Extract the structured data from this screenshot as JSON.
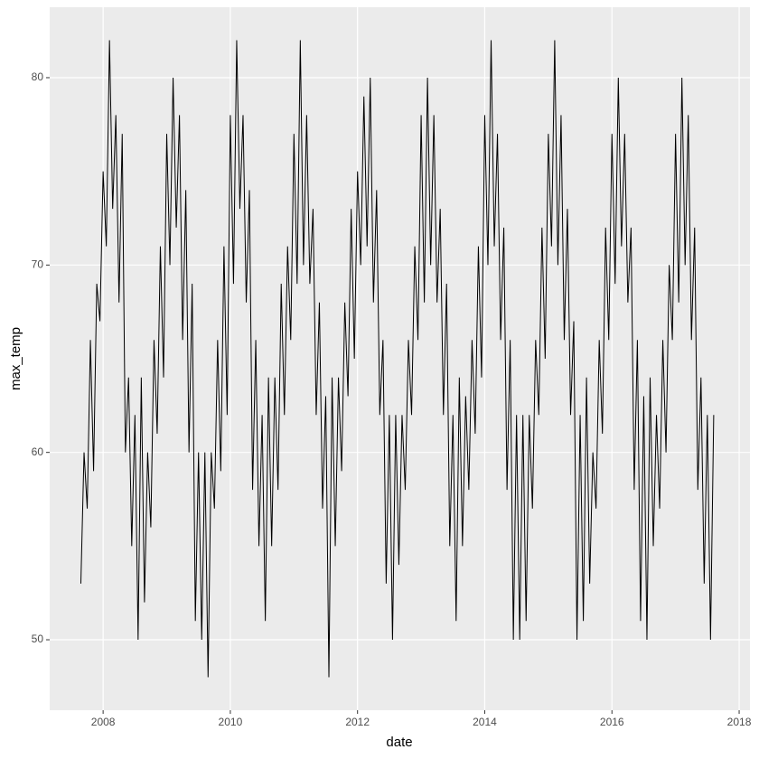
{
  "chart_data": {
    "type": "line",
    "x_label": "date",
    "y_label": "max_temp",
    "color": "#000000",
    "xlim": [
      2007.16,
      2018.17
    ],
    "ylim": [
      46.24,
      83.76
    ],
    "xticks": [
      2008,
      2010,
      2012,
      2014,
      2016,
      2018
    ],
    "yticks": [
      50,
      60,
      70,
      80
    ],
    "grid": true,
    "x": [
      2007.65,
      2007.7,
      2007.75,
      2007.8,
      2007.85,
      2007.9,
      2007.95,
      2008,
      2008.05,
      2008.1,
      2008.15,
      2008.2,
      2008.25,
      2008.3,
      2008.35,
      2008.4,
      2008.45,
      2008.5,
      2008.55,
      2008.6,
      2008.65,
      2008.7,
      2008.75,
      2008.8,
      2008.85,
      2008.9,
      2008.95,
      2009,
      2009.05,
      2009.1,
      2009.15,
      2009.2,
      2009.25,
      2009.3,
      2009.35,
      2009.4,
      2009.45,
      2009.5,
      2009.55,
      2009.6,
      2009.65,
      2009.7,
      2009.75,
      2009.8,
      2009.85,
      2009.9,
      2009.95,
      2010,
      2010.05,
      2010.1,
      2010.15,
      2010.2,
      2010.25,
      2010.3,
      2010.35,
      2010.4,
      2010.45,
      2010.5,
      2010.55,
      2010.6,
      2010.65,
      2010.7,
      2010.75,
      2010.8,
      2010.85,
      2010.9,
      2010.95,
      2011,
      2011.05,
      2011.1,
      2011.15,
      2011.2,
      2011.25,
      2011.3,
      2011.35,
      2011.4,
      2011.45,
      2011.5,
      2011.55,
      2011.6,
      2011.65,
      2011.7,
      2011.75,
      2011.8,
      2011.85,
      2011.9,
      2011.95,
      2012,
      2012.05,
      2012.1,
      2012.15,
      2012.2,
      2012.25,
      2012.3,
      2012.35,
      2012.4,
      2012.45,
      2012.5,
      2012.55,
      2012.6,
      2012.65,
      2012.7,
      2012.75,
      2012.8,
      2012.85,
      2012.9,
      2012.95,
      2013,
      2013.05,
      2013.1,
      2013.15,
      2013.2,
      2013.25,
      2013.3,
      2013.35,
      2013.4,
      2013.45,
      2013.5,
      2013.55,
      2013.6,
      2013.65,
      2013.7,
      2013.75,
      2013.8,
      2013.85,
      2013.9,
      2013.95,
      2014,
      2014.05,
      2014.1,
      2014.15,
      2014.2,
      2014.25,
      2014.3,
      2014.35,
      2014.4,
      2014.45,
      2014.5,
      2014.55,
      2014.6,
      2014.65,
      2014.7,
      2014.75,
      2014.8,
      2014.85,
      2014.9,
      2014.95,
      2015,
      2015.05,
      2015.1,
      2015.15,
      2015.2,
      2015.25,
      2015.3,
      2015.35,
      2015.4,
      2015.45,
      2015.5,
      2015.55,
      2015.6,
      2015.65,
      2015.7,
      2015.75,
      2015.8,
      2015.85,
      2015.9,
      2015.95,
      2016,
      2016.05,
      2016.1,
      2016.15,
      2016.2,
      2016.25,
      2016.3,
      2016.35,
      2016.4,
      2016.45,
      2016.5,
      2016.55,
      2016.6,
      2016.65,
      2016.7,
      2016.75,
      2016.8,
      2016.85,
      2016.9,
      2016.95,
      2017,
      2017.05,
      2017.1,
      2017.15,
      2017.2,
      2017.25,
      2017.3,
      2017.35,
      2017.4,
      2017.45,
      2017.5,
      2017.55,
      2017.6
    ],
    "values": [
      53,
      60,
      57,
      66,
      59,
      69,
      67,
      75,
      71,
      82,
      73,
      78,
      68,
      77,
      60,
      64,
      55,
      62,
      50,
      64,
      52,
      60,
      56,
      66,
      61,
      71,
      64,
      77,
      70,
      80,
      72,
      78,
      66,
      74,
      60,
      69,
      51,
      60,
      50,
      60,
      48,
      60,
      57,
      66,
      59,
      71,
      62,
      78,
      69,
      82,
      73,
      78,
      68,
      74,
      58,
      66,
      55,
      62,
      51,
      64,
      55,
      64,
      58,
      69,
      62,
      71,
      66,
      77,
      69,
      82,
      70,
      78,
      69,
      73,
      62,
      68,
      57,
      63,
      48,
      64,
      55,
      64,
      59,
      68,
      63,
      73,
      65,
      75,
      70,
      79,
      71,
      80,
      68,
      74,
      62,
      66,
      53,
      62,
      50,
      62,
      54,
      62,
      58,
      66,
      62,
      71,
      66,
      78,
      68,
      80,
      70,
      78,
      68,
      73,
      62,
      69,
      55,
      62,
      51,
      64,
      55,
      63,
      58,
      66,
      61,
      71,
      64,
      78,
      70,
      82,
      71,
      77,
      66,
      72,
      58,
      66,
      50,
      62,
      50,
      62,
      51,
      62,
      57,
      66,
      62,
      72,
      65,
      77,
      71,
      82,
      70,
      78,
      66,
      73,
      62,
      67,
      50,
      62,
      51,
      64,
      53,
      60,
      57,
      66,
      61,
      72,
      66,
      77,
      69,
      80,
      71,
      77,
      68,
      72,
      58,
      66,
      51,
      63,
      50,
      64,
      55,
      62,
      57,
      66,
      60,
      70,
      66,
      77,
      68,
      80,
      70,
      78,
      66,
      72,
      58,
      64,
      53,
      62,
      50,
      62
    ]
  }
}
